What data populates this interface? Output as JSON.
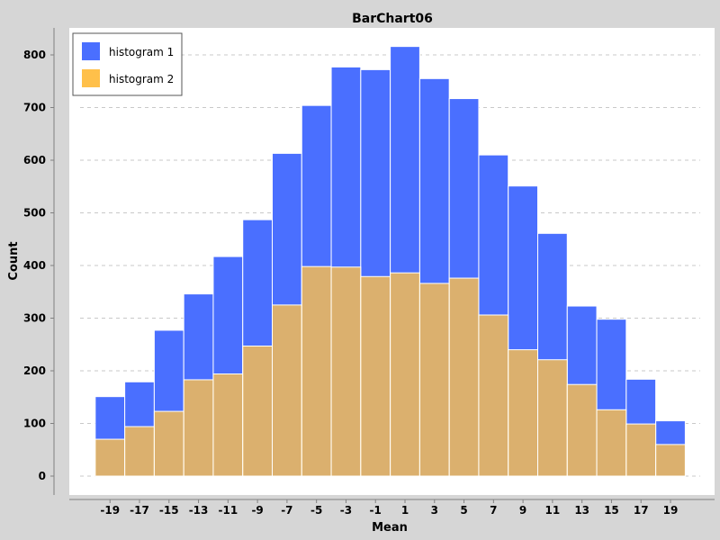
{
  "chart_data": {
    "type": "bar",
    "title": "BarChart06",
    "xlabel": "Mean",
    "ylabel": "Count",
    "xlim": [
      -21,
      21
    ],
    "ylim": [
      -20,
      850
    ],
    "bin_width": 2,
    "x_ticks": [
      -19,
      -17,
      -15,
      -13,
      -11,
      -9,
      -7,
      -5,
      -3,
      -1,
      1,
      3,
      5,
      7,
      9,
      11,
      13,
      15,
      17,
      19
    ],
    "y_ticks": [
      0,
      100,
      200,
      300,
      400,
      500,
      600,
      700,
      800
    ],
    "grid": true,
    "legend_position": "top-left",
    "series": [
      {
        "name": "histogram 1",
        "color": "#4a6fff",
        "x": [
          -19,
          -17,
          -15,
          -13,
          -11,
          -9,
          -7,
          -5,
          -3,
          -1,
          1,
          3,
          5,
          7,
          9,
          11,
          13,
          15,
          17,
          19
        ],
        "values": [
          151,
          179,
          277,
          346,
          417,
          487,
          613,
          704,
          777,
          772,
          816,
          755,
          717,
          610,
          551,
          461,
          323,
          298,
          184,
          105
        ]
      },
      {
        "name": "histogram 2",
        "color": "#ffc04a",
        "x": [
          -19,
          -17,
          -15,
          -13,
          -11,
          -9,
          -7,
          -5,
          -3,
          -1,
          1,
          3,
          5,
          7,
          9,
          11,
          13,
          15,
          17,
          19
        ],
        "values": [
          70,
          94,
          123,
          183,
          194,
          247,
          325,
          398,
          397,
          379,
          386,
          366,
          376,
          306,
          240,
          221,
          174,
          126,
          99,
          60
        ]
      }
    ]
  }
}
